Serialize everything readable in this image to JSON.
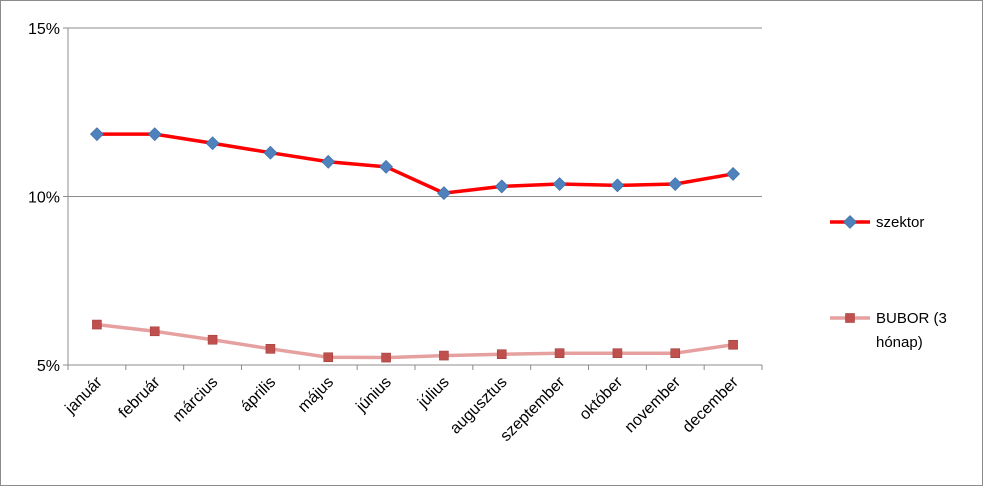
{
  "chart_data": {
    "type": "line",
    "title": "",
    "xlabel": "",
    "ylabel": "",
    "categories": [
      "január",
      "február",
      "március",
      "április",
      "május",
      "június",
      "július",
      "augusztus",
      "szeptember",
      "október",
      "november",
      "december"
    ],
    "ylim": [
      5,
      15
    ],
    "yticks": [
      5,
      10,
      15
    ],
    "ytick_labels": [
      "5%",
      "10%",
      "15%"
    ],
    "grid": "horizontal major lines",
    "legend_position": "right",
    "series": [
      {
        "name": "szektor",
        "color": "#ff0000",
        "marker": "diamond",
        "marker_color": "#4f81bd",
        "values": [
          11.85,
          11.85,
          11.58,
          11.3,
          11.03,
          10.88,
          10.1,
          10.3,
          10.37,
          10.33,
          10.37,
          10.67
        ]
      },
      {
        "name": "BUBOR (3 hónap)",
        "legend_lines": [
          "BUBOR (3",
          "hónap)"
        ],
        "color": "#e6a0a0",
        "marker": "square",
        "marker_color": "#c0504d",
        "values": [
          6.2,
          6.0,
          5.75,
          5.48,
          5.23,
          5.22,
          5.28,
          5.32,
          5.35,
          5.35,
          5.35,
          5.6
        ]
      }
    ]
  }
}
